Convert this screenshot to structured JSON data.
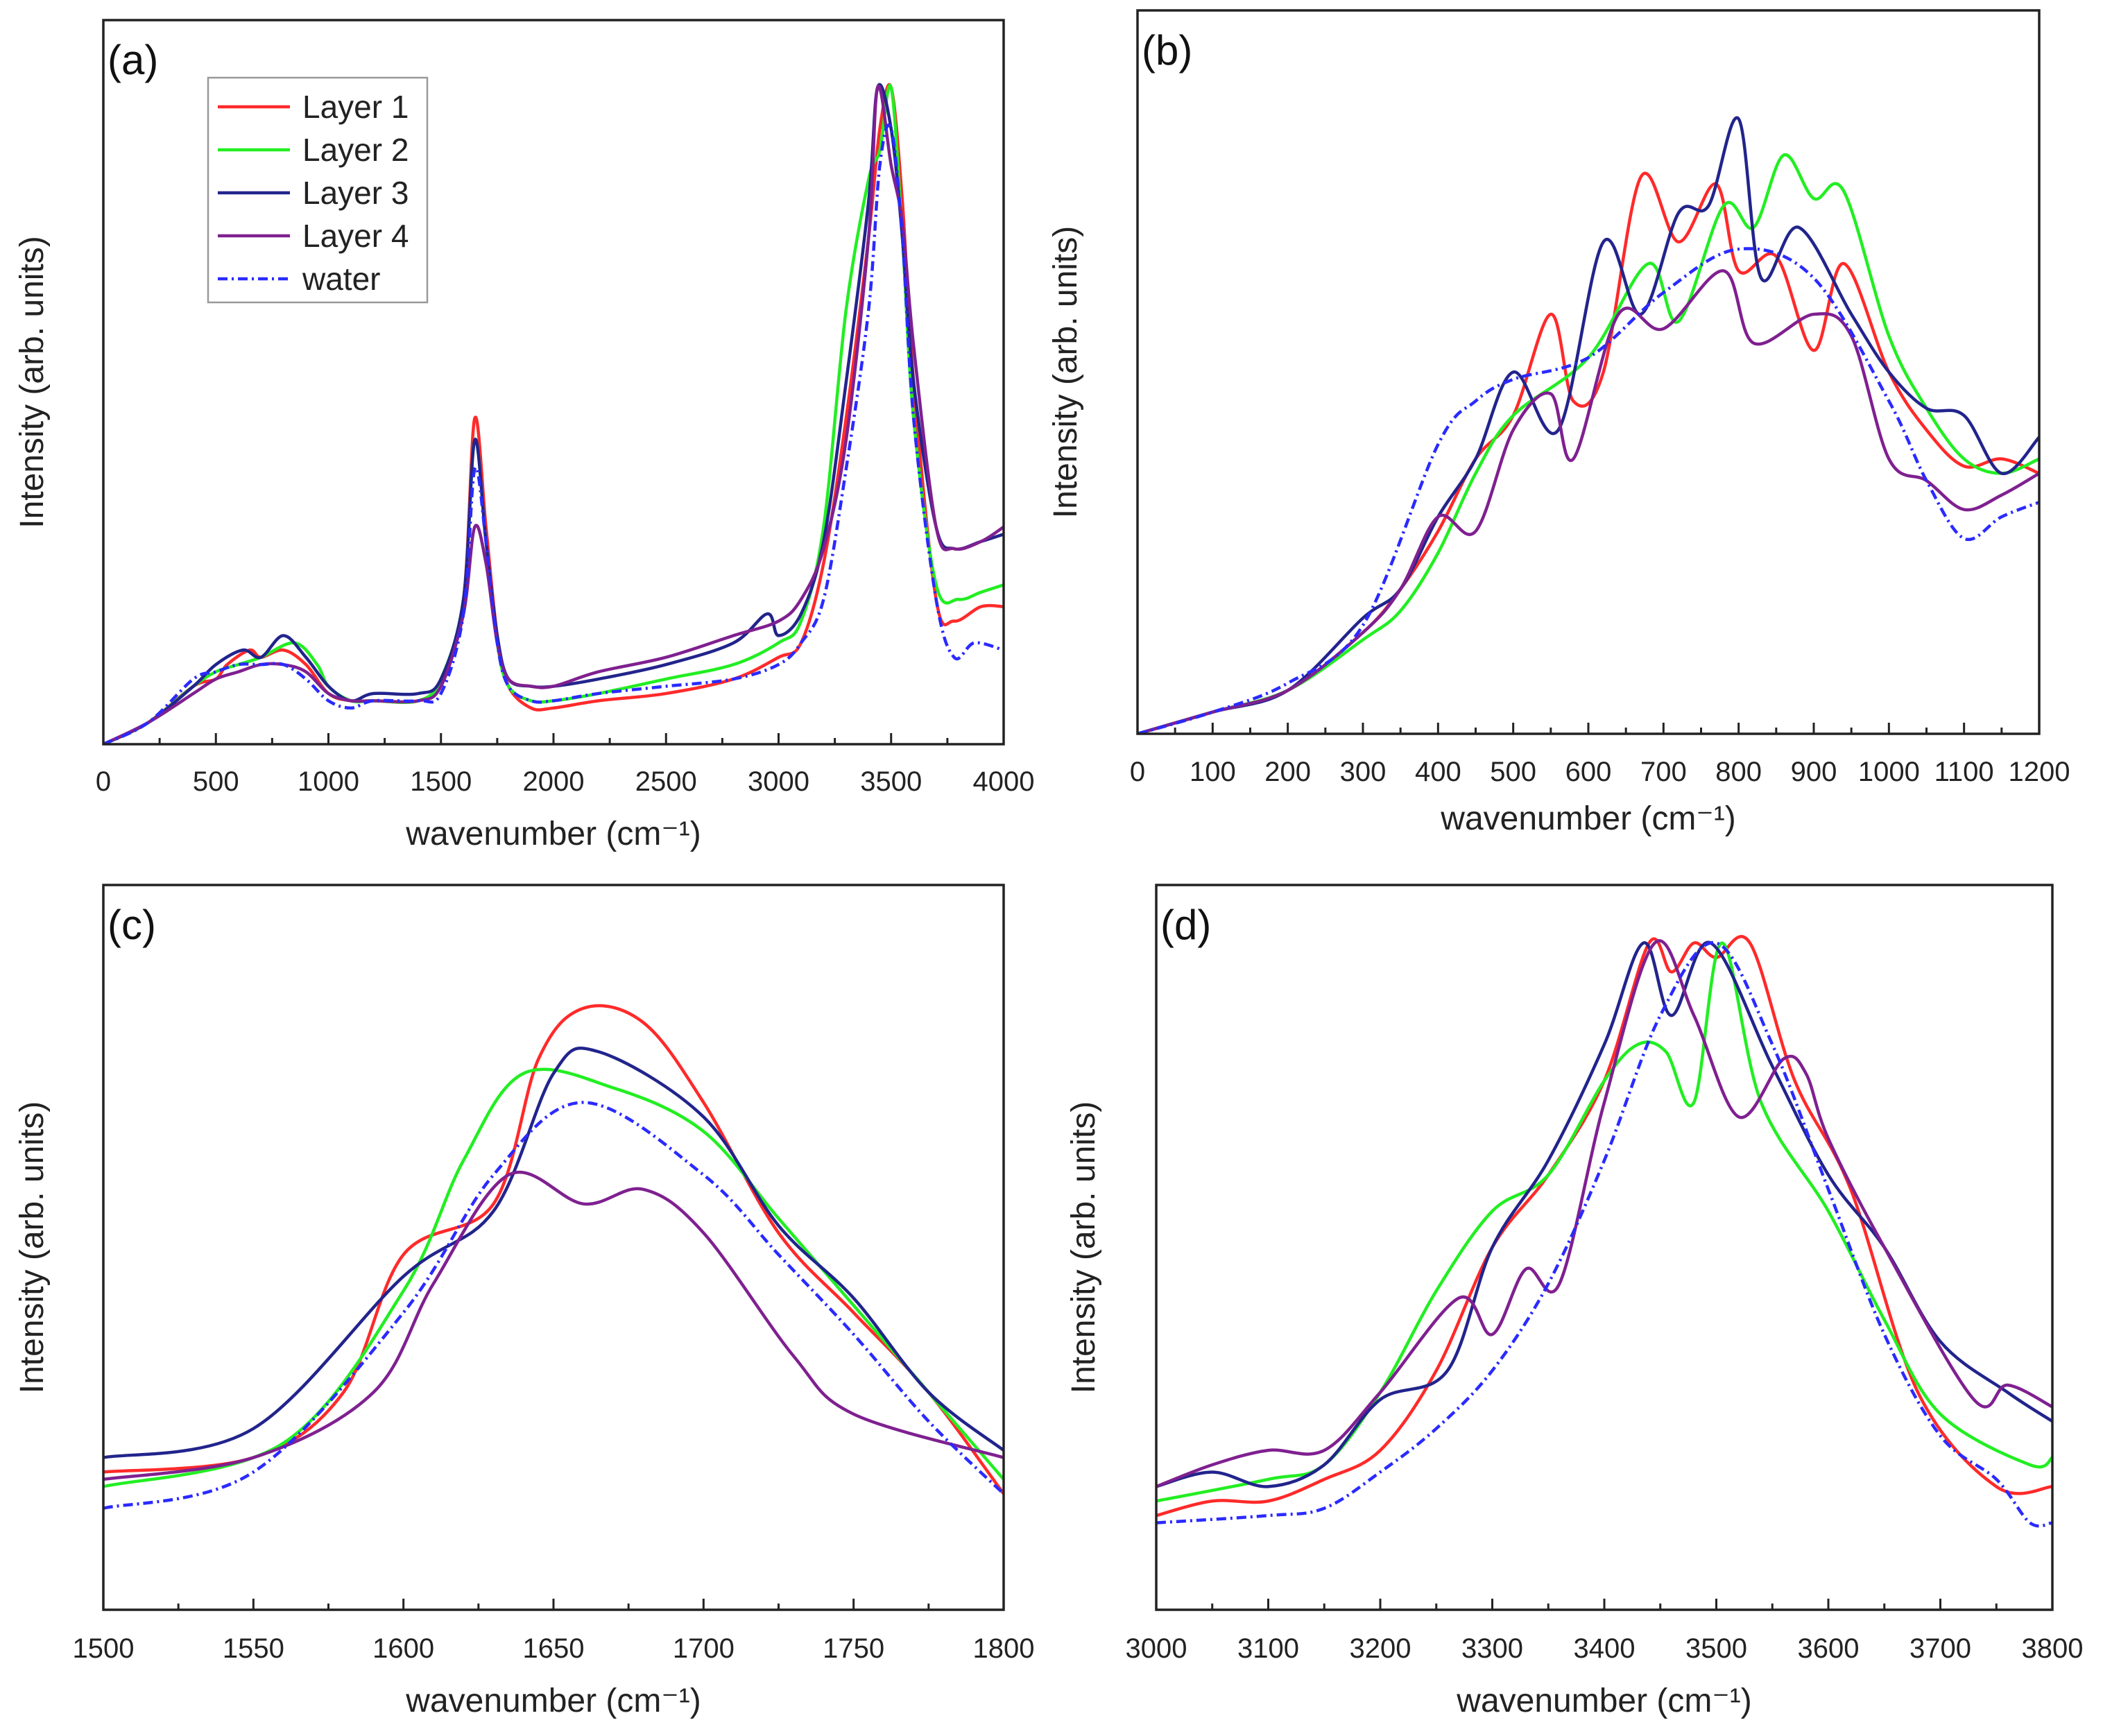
{
  "colors": {
    "Layer 1": "#ff2a2a",
    "Layer 2": "#22ee22",
    "Layer 3": "#22248c",
    "Layer 4": "#7f2090",
    "water": "#2a2aff"
  },
  "chart_data": [
    {
      "type": "line",
      "panel": "(a)",
      "xlabel": "wavenumber (cm⁻¹)",
      "ylabel": "Intensity (arb. units)",
      "xlim": [
        0,
        4000
      ],
      "ylim": [
        0,
        1
      ],
      "xticks": [
        0,
        500,
        1000,
        1500,
        2000,
        2500,
        3000,
        3500,
        4000
      ],
      "minor_step": 250,
      "legend": {
        "placement": "top-left",
        "entries": [
          "Layer 1",
          "Layer 2",
          "Layer 3",
          "Layer 4",
          "water"
        ]
      },
      "series": [
        {
          "name": "Layer 1",
          "x": [
            0,
            200,
            400,
            500,
            550,
            650,
            700,
            800,
            900,
            1000,
            1100,
            1200,
            1400,
            1500,
            1600,
            1650,
            1700,
            1750,
            1800,
            1900,
            2000,
            2200,
            2500,
            2800,
            3000,
            3100,
            3200,
            3300,
            3400,
            3450,
            3500,
            3550,
            3600,
            3700,
            3780,
            3900,
            4000
          ],
          "y": [
            0,
            0.03,
            0.08,
            0.09,
            0.11,
            0.13,
            0.12,
            0.13,
            0.11,
            0.07,
            0.06,
            0.06,
            0.06,
            0.09,
            0.2,
            0.45,
            0.3,
            0.15,
            0.08,
            0.05,
            0.05,
            0.06,
            0.07,
            0.09,
            0.12,
            0.14,
            0.25,
            0.45,
            0.7,
            0.85,
            0.907,
            0.75,
            0.5,
            0.2,
            0.17,
            0.19,
            0.19
          ]
        },
        {
          "name": "Layer 2",
          "x": [
            0,
            200,
            400,
            500,
            600,
            700,
            850,
            950,
            1000,
            1100,
            1200,
            1400,
            1500,
            1600,
            1650,
            1700,
            1750,
            1800,
            1900,
            2000,
            2200,
            2500,
            2800,
            3000,
            3100,
            3200,
            3300,
            3400,
            3450,
            3500,
            3550,
            3600,
            3700,
            3800,
            3900,
            4000
          ],
          "y": [
            0,
            0.03,
            0.08,
            0.1,
            0.11,
            0.12,
            0.14,
            0.11,
            0.08,
            0.06,
            0.06,
            0.06,
            0.09,
            0.2,
            0.42,
            0.28,
            0.14,
            0.08,
            0.06,
            0.06,
            0.07,
            0.09,
            0.11,
            0.14,
            0.17,
            0.3,
            0.6,
            0.78,
            0.82,
            0.907,
            0.7,
            0.45,
            0.22,
            0.2,
            0.21,
            0.22
          ]
        },
        {
          "name": "Layer 3",
          "x": [
            0,
            200,
            400,
            500,
            620,
            700,
            800,
            900,
            1000,
            1100,
            1200,
            1400,
            1500,
            1600,
            1650,
            1700,
            1750,
            1800,
            1900,
            2000,
            2200,
            2500,
            2800,
            2950,
            3000,
            3100,
            3200,
            3300,
            3400,
            3440,
            3500,
            3550,
            3600,
            3700,
            3780,
            3900,
            4000
          ],
          "y": [
            0,
            0.03,
            0.08,
            0.11,
            0.13,
            0.12,
            0.15,
            0.12,
            0.08,
            0.06,
            0.07,
            0.07,
            0.09,
            0.2,
            0.42,
            0.28,
            0.15,
            0.09,
            0.08,
            0.08,
            0.09,
            0.11,
            0.14,
            0.18,
            0.15,
            0.18,
            0.28,
            0.5,
            0.75,
            0.907,
            0.85,
            0.7,
            0.5,
            0.3,
            0.27,
            0.28,
            0.29
          ]
        },
        {
          "name": "Layer 4",
          "x": [
            0,
            200,
            400,
            500,
            600,
            700,
            800,
            900,
            1000,
            1100,
            1200,
            1400,
            1500,
            1600,
            1650,
            1700,
            1750,
            1800,
            1900,
            2000,
            2200,
            2500,
            2800,
            3000,
            3100,
            3200,
            3300,
            3400,
            3440,
            3500,
            3550,
            3600,
            3700,
            3780,
            3900,
            4000
          ],
          "y": [
            0,
            0.03,
            0.07,
            0.09,
            0.1,
            0.11,
            0.11,
            0.1,
            0.07,
            0.06,
            0.06,
            0.06,
            0.08,
            0.18,
            0.3,
            0.25,
            0.14,
            0.09,
            0.08,
            0.08,
            0.1,
            0.12,
            0.15,
            0.17,
            0.2,
            0.27,
            0.42,
            0.7,
            0.907,
            0.8,
            0.72,
            0.55,
            0.3,
            0.27,
            0.28,
            0.3
          ]
        },
        {
          "name": "water",
          "dashed": true,
          "x": [
            0,
            200,
            400,
            500,
            600,
            700,
            800,
            900,
            1000,
            1100,
            1200,
            1400,
            1500,
            1600,
            1650,
            1700,
            1750,
            1800,
            1900,
            2000,
            2200,
            2500,
            2800,
            3000,
            3100,
            3200,
            3300,
            3400,
            3450,
            3500,
            3550,
            3600,
            3700,
            3780,
            3870,
            4000
          ],
          "y": [
            0,
            0.03,
            0.09,
            0.1,
            0.11,
            0.11,
            0.11,
            0.09,
            0.06,
            0.05,
            0.06,
            0.06,
            0.07,
            0.18,
            0.38,
            0.28,
            0.14,
            0.08,
            0.06,
            0.06,
            0.07,
            0.08,
            0.09,
            0.11,
            0.14,
            0.2,
            0.38,
            0.6,
            0.8,
            0.85,
            0.7,
            0.45,
            0.2,
            0.12,
            0.14,
            0.13
          ]
        }
      ]
    },
    {
      "type": "line",
      "panel": "(b)",
      "xlabel": "wavenumber (cm⁻¹)",
      "ylabel": "Intensity (arb. units)",
      "xlim": [
        0,
        1200
      ],
      "ylim": [
        0,
        1
      ],
      "xticks": [
        0,
        100,
        200,
        300,
        400,
        500,
        600,
        700,
        800,
        900,
        1000,
        1100,
        1200
      ],
      "minor_step": 50,
      "series": [
        {
          "name": "Layer 1",
          "x": [
            0,
            100,
            200,
            300,
            350,
            400,
            450,
            500,
            550,
            580,
            620,
            670,
            720,
            770,
            800,
            850,
            900,
            940,
            1000,
            1050,
            1100,
            1150,
            1200
          ],
          "y": [
            0,
            0.03,
            0.06,
            0.14,
            0.2,
            0.28,
            0.38,
            0.44,
            0.58,
            0.46,
            0.5,
            0.77,
            0.68,
            0.76,
            0.64,
            0.66,
            0.53,
            0.65,
            0.5,
            0.42,
            0.37,
            0.38,
            0.36
          ]
        },
        {
          "name": "Layer 2",
          "x": [
            0,
            100,
            200,
            300,
            350,
            400,
            450,
            500,
            600,
            680,
            720,
            780,
            820,
            860,
            900,
            940,
            1000,
            1050,
            1100,
            1150,
            1200
          ],
          "y": [
            0,
            0.03,
            0.06,
            0.13,
            0.17,
            0.25,
            0.36,
            0.44,
            0.52,
            0.65,
            0.57,
            0.73,
            0.7,
            0.8,
            0.74,
            0.75,
            0.55,
            0.45,
            0.38,
            0.36,
            0.38
          ]
        },
        {
          "name": "Layer 3",
          "x": [
            0,
            100,
            200,
            300,
            350,
            400,
            450,
            500,
            560,
            620,
            670,
            720,
            760,
            800,
            830,
            880,
            950,
            1000,
            1050,
            1100,
            1150,
            1200
          ],
          "y": [
            0,
            0.03,
            0.06,
            0.16,
            0.2,
            0.3,
            0.38,
            0.5,
            0.42,
            0.68,
            0.58,
            0.72,
            0.73,
            0.85,
            0.63,
            0.7,
            0.58,
            0.5,
            0.45,
            0.44,
            0.36,
            0.41
          ]
        },
        {
          "name": "Layer 4",
          "x": [
            0,
            100,
            200,
            300,
            350,
            400,
            450,
            500,
            550,
            580,
            640,
            700,
            780,
            820,
            900,
            950,
            1000,
            1050,
            1100,
            1150,
            1200
          ],
          "y": [
            0,
            0.03,
            0.06,
            0.14,
            0.2,
            0.3,
            0.28,
            0.42,
            0.47,
            0.38,
            0.58,
            0.56,
            0.64,
            0.54,
            0.58,
            0.55,
            0.38,
            0.35,
            0.31,
            0.33,
            0.36
          ]
        },
        {
          "name": "water",
          "dashed": true,
          "x": [
            0,
            100,
            200,
            300,
            400,
            450,
            500,
            600,
            700,
            800,
            900,
            1000,
            1050,
            1100,
            1150,
            1200
          ],
          "y": [
            0,
            0.03,
            0.07,
            0.15,
            0.4,
            0.46,
            0.49,
            0.52,
            0.61,
            0.67,
            0.63,
            0.46,
            0.35,
            0.27,
            0.3,
            0.32
          ]
        }
      ]
    },
    {
      "type": "line",
      "panel": "(c)",
      "xlabel": "wavenumber (cm⁻¹)",
      "ylabel": "Intensity (arb. units)",
      "xlim": [
        1500,
        1800
      ],
      "ylim": [
        0,
        1
      ],
      "xticks": [
        1500,
        1550,
        1600,
        1650,
        1700,
        1750,
        1800
      ],
      "minor_step": 25,
      "series": [
        {
          "name": "Layer 1",
          "x": [
            1500,
            1550,
            1580,
            1600,
            1630,
            1645,
            1660,
            1680,
            1700,
            1725,
            1750,
            1775,
            1800
          ],
          "y": [
            0.19,
            0.21,
            0.3,
            0.49,
            0.56,
            0.76,
            0.83,
            0.81,
            0.7,
            0.52,
            0.41,
            0.3,
            0.16
          ]
        },
        {
          "name": "Layer 2",
          "x": [
            1500,
            1560,
            1600,
            1620,
            1640,
            1670,
            1700,
            1725,
            1750,
            1775,
            1800
          ],
          "y": [
            0.17,
            0.23,
            0.44,
            0.62,
            0.74,
            0.72,
            0.66,
            0.54,
            0.42,
            0.3,
            0.18
          ]
        },
        {
          "name": "Layer 3",
          "x": [
            1500,
            1550,
            1600,
            1630,
            1650,
            1665,
            1700,
            1725,
            1750,
            1775,
            1800
          ],
          "y": [
            0.21,
            0.25,
            0.46,
            0.55,
            0.74,
            0.77,
            0.68,
            0.53,
            0.43,
            0.3,
            0.22
          ]
        },
        {
          "name": "Layer 4",
          "x": [
            1500,
            1550,
            1590,
            1610,
            1635,
            1660,
            1680,
            1700,
            1730,
            1750,
            1800
          ],
          "y": [
            0.18,
            0.21,
            0.3,
            0.45,
            0.6,
            0.56,
            0.58,
            0.52,
            0.35,
            0.27,
            0.21
          ]
        },
        {
          "name": "water",
          "dashed": true,
          "x": [
            1500,
            1550,
            1600,
            1630,
            1660,
            1700,
            1725,
            1750,
            1775,
            1800
          ],
          "y": [
            0.14,
            0.19,
            0.41,
            0.6,
            0.7,
            0.6,
            0.49,
            0.38,
            0.26,
            0.16
          ]
        }
      ]
    },
    {
      "type": "line",
      "panel": "(d)",
      "xlabel": "wavenumber (cm⁻¹)",
      "ylabel": "Intensity (arb. units)",
      "xlim": [
        3000,
        3800
      ],
      "ylim": [
        0,
        1
      ],
      "xticks": [
        3000,
        3100,
        3200,
        3300,
        3400,
        3500,
        3600,
        3700,
        3800
      ],
      "minor_step": 50,
      "series": [
        {
          "name": "Layer 1",
          "x": [
            3000,
            3050,
            3100,
            3150,
            3200,
            3250,
            3300,
            3350,
            3400,
            3440,
            3460,
            3480,
            3500,
            3530,
            3570,
            3620,
            3680,
            3750,
            3800
          ],
          "y": [
            0.13,
            0.15,
            0.15,
            0.18,
            0.22,
            0.33,
            0.5,
            0.6,
            0.73,
            0.92,
            0.88,
            0.92,
            0.9,
            0.92,
            0.73,
            0.58,
            0.3,
            0.17,
            0.17
          ]
        },
        {
          "name": "Layer 2",
          "x": [
            3000,
            3100,
            3150,
            3200,
            3250,
            3300,
            3350,
            3400,
            3430,
            3455,
            3480,
            3505,
            3540,
            3600,
            3650,
            3700,
            3780,
            3800
          ],
          "y": [
            0.15,
            0.18,
            0.2,
            0.3,
            0.44,
            0.55,
            0.6,
            0.73,
            0.78,
            0.77,
            0.7,
            0.92,
            0.7,
            0.55,
            0.4,
            0.27,
            0.2,
            0.21
          ]
        },
        {
          "name": "Layer 3",
          "x": [
            3000,
            3050,
            3100,
            3150,
            3200,
            3260,
            3300,
            3350,
            3400,
            3435,
            3460,
            3495,
            3550,
            3600,
            3650,
            3700,
            3760,
            3800
          ],
          "y": [
            0.17,
            0.19,
            0.17,
            0.2,
            0.29,
            0.33,
            0.5,
            0.62,
            0.78,
            0.92,
            0.82,
            0.92,
            0.75,
            0.6,
            0.5,
            0.37,
            0.3,
            0.26
          ]
        },
        {
          "name": "Layer 4",
          "x": [
            3000,
            3050,
            3100,
            3150,
            3200,
            3270,
            3300,
            3330,
            3360,
            3400,
            3445,
            3480,
            3520,
            3560,
            3580,
            3600,
            3650,
            3730,
            3760,
            3800
          ],
          "y": [
            0.17,
            0.2,
            0.22,
            0.22,
            0.3,
            0.43,
            0.38,
            0.47,
            0.45,
            0.7,
            0.92,
            0.82,
            0.68,
            0.76,
            0.74,
            0.65,
            0.5,
            0.29,
            0.31,
            0.28
          ]
        },
        {
          "name": "water",
          "dashed": true,
          "x": [
            3000,
            3100,
            3150,
            3200,
            3250,
            3300,
            3350,
            3400,
            3450,
            3500,
            3550,
            3600,
            3650,
            3700,
            3750,
            3780,
            3800
          ],
          "y": [
            0.12,
            0.13,
            0.14,
            0.19,
            0.25,
            0.33,
            0.45,
            0.62,
            0.82,
            0.92,
            0.78,
            0.58,
            0.38,
            0.24,
            0.18,
            0.12,
            0.12
          ]
        }
      ]
    }
  ]
}
